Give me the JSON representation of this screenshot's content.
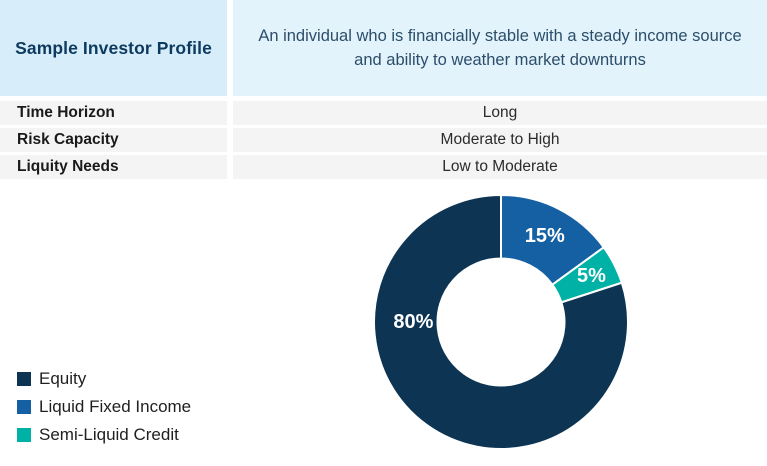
{
  "header": {
    "title": "Sample Investor Profile",
    "description": "An individual who is financially stable with a steady income source and ability to weather market downturns"
  },
  "table": {
    "rows": [
      {
        "label": "Time Horizon",
        "value": "Long"
      },
      {
        "label": "Risk Capacity",
        "value": "Moderate to High"
      },
      {
        "label": "Liquity Needs",
        "value": "Low to Moderate"
      }
    ]
  },
  "chart_data": {
    "type": "pie",
    "variant": "donut",
    "title": "",
    "start_angle_deg": 0,
    "direction": "clockwise",
    "inner_radius_frac": 0.5,
    "slices": [
      {
        "name": "Liquid Fixed Income",
        "value": 15,
        "label": "15%",
        "color": "#1560a3",
        "label_angle_deg": 27,
        "label_radius_frac": 0.76
      },
      {
        "name": "Semi-Liquid Credit",
        "value": 5,
        "label": "5%",
        "color": "#00b2a5",
        "label_angle_deg": 63,
        "label_radius_frac": 0.8
      },
      {
        "name": "Equity",
        "value": 80,
        "label": "80%",
        "color": "#0d3553",
        "label_angle_deg": 270,
        "label_radius_frac": 0.69
      }
    ],
    "legend_position": "bottom-left",
    "legend": [
      {
        "name": "Equity",
        "color": "#0d3553"
      },
      {
        "name": "Liquid Fixed Income",
        "color": "#1560a3"
      },
      {
        "name": "Semi-Liquid Credit",
        "color": "#00b2a5"
      }
    ]
  },
  "colors": {
    "header_left_bg": "#d7eefa",
    "header_right_bg": "#e2f3fc",
    "row_bg": "#f4f4f5",
    "title_text": "#0d3a5e",
    "description_text": "#2c4e6a",
    "equity": "#0d3553",
    "liquid_fixed_income": "#1560a3",
    "semi_liquid_credit": "#00b2a5"
  }
}
